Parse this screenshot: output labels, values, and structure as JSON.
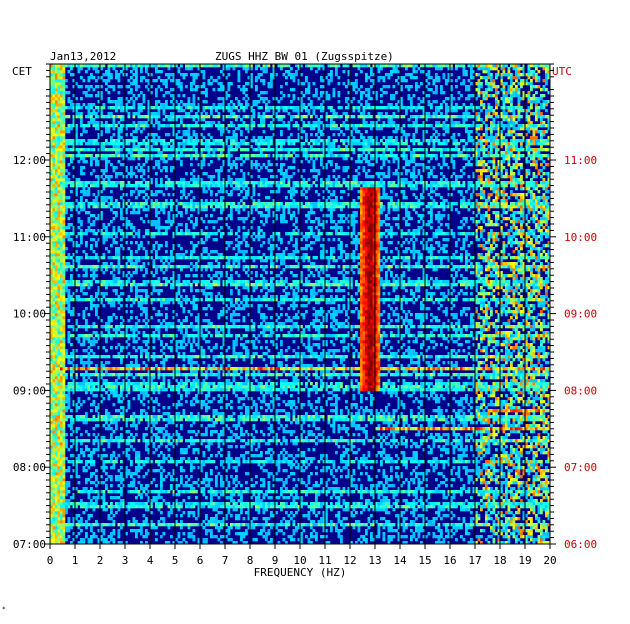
{
  "header": {
    "date": "Jan13,2012",
    "station": "ZUGS HHZ BW 01 (Zugsspitze)",
    "left_zone": "CET",
    "right_zone": "UTC"
  },
  "footer_mark": "*",
  "colors": {
    "utc_text": "#cc0000",
    "background": "#00008b"
  },
  "chart_data": {
    "type": "heatmap",
    "title": "ZUGS HHZ BW 01 (Zugsspitze)",
    "xlabel": "FREQUENCY (HZ)",
    "x_ticks": [
      "0",
      "1",
      "2",
      "3",
      "4",
      "5",
      "6",
      "7",
      "8",
      "9",
      "10",
      "11",
      "12",
      "13",
      "14",
      "15",
      "16",
      "17",
      "18",
      "19",
      "20"
    ],
    "xlim": [
      0,
      20
    ],
    "y_ticks_left": [
      "07:00",
      "08:00",
      "09:00",
      "10:00",
      "11:00",
      "12:00"
    ],
    "y_ticks_right": [
      "06:00",
      "07:00",
      "08:00",
      "09:00",
      "10:00",
      "11:00"
    ],
    "ylim_cet": [
      "07:00",
      "13:15"
    ],
    "colormap": "jet",
    "features": [
      {
        "type": "tremor_band",
        "freq_hz": 12.8,
        "from": "09:00",
        "to": "11:40",
        "intensity": "high"
      },
      {
        "type": "horizontal_event",
        "time": "09:17",
        "freq_range": [
          0,
          20
        ]
      },
      {
        "type": "horizontal_event",
        "time": "08:45",
        "freq_range": [
          17.5,
          20
        ]
      },
      {
        "type": "horizontal_event",
        "time": "08:30",
        "freq_range": [
          13,
          20
        ]
      },
      {
        "type": "low_freq_noise",
        "freq_range": [
          0,
          0.6
        ],
        "from": "07:00",
        "to": "13:15"
      },
      {
        "type": "high_freq_noise",
        "freq_range": [
          17,
          20
        ],
        "from": "07:00",
        "to": "13:15"
      }
    ]
  }
}
